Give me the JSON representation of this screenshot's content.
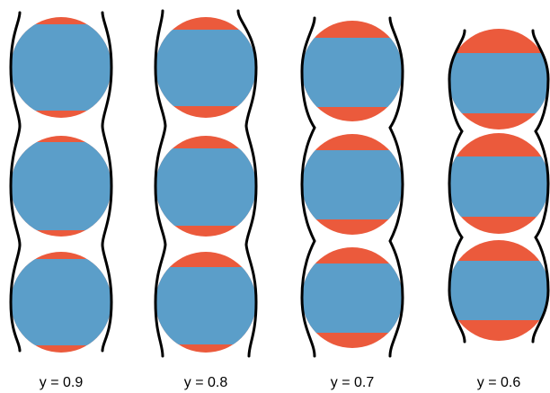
{
  "colors": {
    "blue": "#5b9ec9",
    "red": "#eb5a3c",
    "outline": "#000000",
    "background": "#ffffff"
  },
  "panels": [
    {
      "label": "y = 0.9",
      "y": 0.9
    },
    {
      "label": "y = 0.8",
      "y": 0.8
    },
    {
      "label": "y = 0.7",
      "y": 0.7
    },
    {
      "label": "y = 0.6",
      "y": 0.6
    }
  ]
}
